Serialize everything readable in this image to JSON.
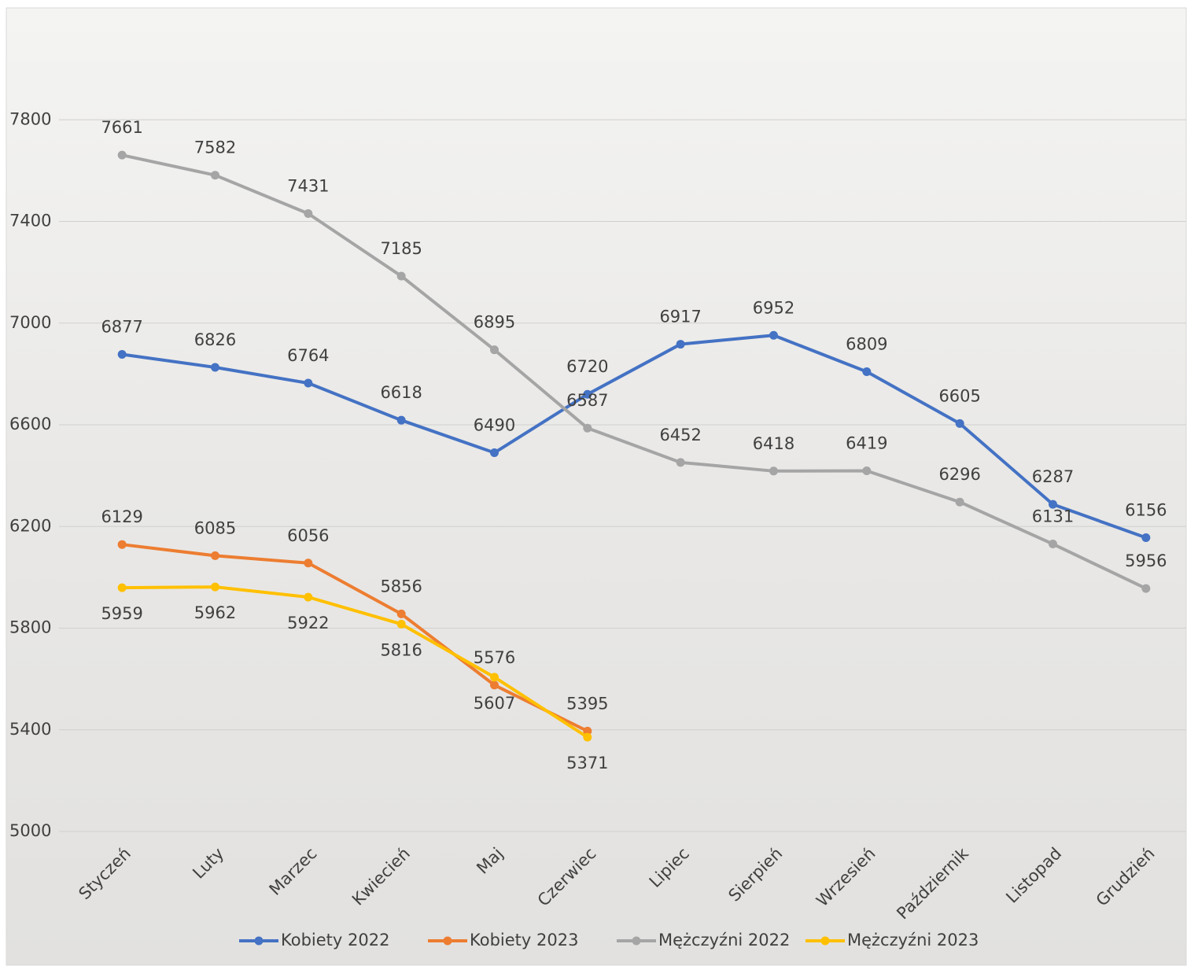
{
  "chart_data": {
    "type": "line",
    "categories": [
      "Styczeń",
      "Luty",
      "Marzec",
      "Kwiecień",
      "Maj",
      "Czerwiec",
      "Lipiec",
      "Sierpień",
      "Wrzesień",
      "Październik",
      "Listopad",
      "Grudzień"
    ],
    "series": [
      {
        "name": "Kobiety 2022",
        "color": "#4472c4",
        "label_position": "above",
        "values": [
          6877,
          6826,
          6764,
          6618,
          6490,
          6720,
          6917,
          6952,
          6809,
          6605,
          6287,
          6156
        ]
      },
      {
        "name": "Kobiety 2023",
        "color": "#ed7d31",
        "label_position": "above",
        "values": [
          6129,
          6085,
          6056,
          5856,
          5576,
          5395,
          null,
          null,
          null,
          null,
          null,
          null
        ]
      },
      {
        "name": "Mężczyźni 2022",
        "color": "#a5a5a5",
        "label_position": "above",
        "values": [
          7661,
          7582,
          7431,
          7185,
          6895,
          6587,
          6452,
          6418,
          6419,
          6296,
          6131,
          5956
        ]
      },
      {
        "name": "Mężczyźni 2023",
        "color": "#ffc000",
        "label_position": "below",
        "values": [
          5959,
          5962,
          5922,
          5816,
          5607,
          5371,
          null,
          null,
          null,
          null,
          null,
          null
        ]
      }
    ],
    "ylim": [
      5000,
      8200
    ],
    "yticks": [
      5000,
      5400,
      5800,
      6200,
      6600,
      7000,
      7400,
      7800
    ],
    "grid": true,
    "legend": "bottom"
  }
}
